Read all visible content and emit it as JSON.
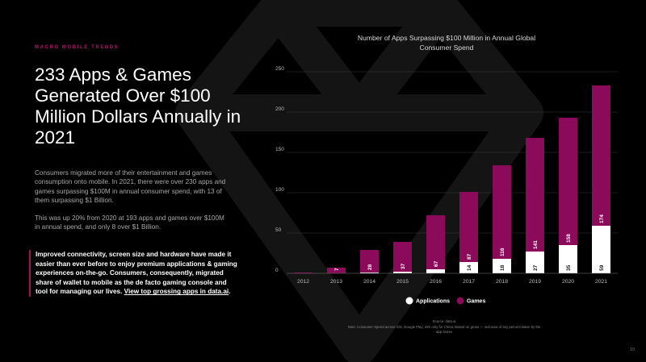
{
  "slide": {
    "kicker": "MACRO MOBILE TRENDS",
    "headline": "233 Apps & Games Generated Over $100 Million Dollars Annually in 2021",
    "paragraph1": "Consumers migrated more of their entertainment and games consumption onto mobile. In 2021, there were over 230 apps and games surpassing $100M in annual consumer spend, with 13 of them surpassing $1 Billion.",
    "paragraph2": "This was up 20% from 2020 at 193 apps and games over $100M in annual spend, and only 8 over $1 Billion.",
    "callout_text": "Improved connectivity, screen size and hardware have made it easier than ever before to enjoy premium applications & gaming experiences on-the-go. Consumers, consequently, migrated share of wallet to mobile as the de facto gaming console and tool for managing our lives.",
    "callout_link": "View top grossing apps in data.ai",
    "callout_end": ".",
    "source_title": "Source: data.ai",
    "source_note": "Note: Consumer Spend across iOS, Google Play; iOS only for China; Based on gross — inclusive of any percent taken by the app stores",
    "page_number": "10"
  },
  "colors": {
    "games": "#8b0a5a",
    "apps": "#ffffff",
    "accent": "#b0166e",
    "grid": "#3a3a3a",
    "axis_text": "#bdbdbd"
  },
  "chart_data": {
    "type": "bar",
    "stacked": true,
    "title": "Number of Apps Surpassing $100 Million in Annual Global Consumer Spend",
    "categories": [
      "2012",
      "2013",
      "2014",
      "2015",
      "2016",
      "2017",
      "2018",
      "2019",
      "2020",
      "2021"
    ],
    "series": [
      {
        "name": "Applications",
        "color": "#ffffff",
        "values": [
          0,
          0,
          1,
          2,
          5,
          14,
          18,
          27,
          35,
          59
        ],
        "labels": [
          "",
          "",
          "",
          "",
          "",
          "14",
          "18",
          "27",
          "35",
          "59"
        ]
      },
      {
        "name": "Games",
        "color": "#8b0a5a",
        "values": [
          1,
          7,
          28,
          37,
          67,
          87,
          116,
          141,
          158,
          174
        ],
        "labels": [
          "",
          "7",
          "28",
          "37",
          "67",
          "87",
          "116",
          "141",
          "158",
          "174"
        ]
      }
    ],
    "ylim": [
      0,
      250
    ],
    "yticks": [
      0,
      50,
      100,
      150,
      200,
      250
    ],
    "grid": true,
    "legend": "bottom-center"
  }
}
